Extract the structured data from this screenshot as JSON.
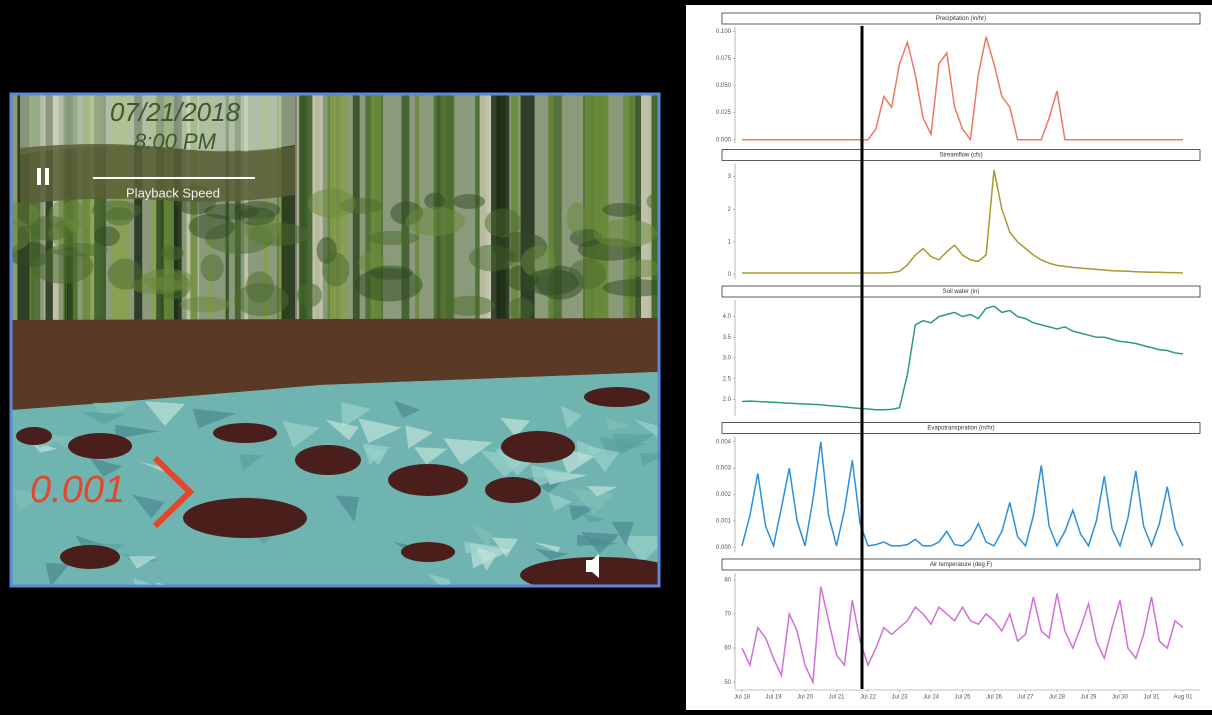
{
  "player": {
    "date": "07/21/2018",
    "time": "8:00 PM",
    "playback_label": "Playback Speed",
    "rate": "0.001"
  },
  "chart_data": [
    {
      "type": "line",
      "title": "Precipitation (in/hr)",
      "color": "#f07860",
      "ylim": [
        -0.003,
        0.104
      ],
      "yticks": [
        {
          "value": 0,
          "label": "0.000"
        },
        {
          "value": 0.025,
          "label": "0.025"
        },
        {
          "value": 0.05,
          "label": "0.050"
        },
        {
          "value": 0.075,
          "label": "0.075"
        },
        {
          "value": 0.1,
          "label": "0.100"
        }
      ],
      "values": [
        0,
        0,
        0,
        0,
        0,
        0,
        0,
        0,
        0,
        0,
        0,
        0,
        0,
        0,
        0,
        0,
        0,
        0.01,
        0.04,
        0.03,
        0.07,
        0.09,
        0.06,
        0.02,
        0.005,
        0.07,
        0.08,
        0.03,
        0.01,
        0,
        0.06,
        0.095,
        0.07,
        0.04,
        0.03,
        0,
        0,
        0,
        0,
        0.02,
        0.045,
        0,
        0,
        0,
        0,
        0,
        0,
        0,
        0,
        0,
        0,
        0,
        0,
        0,
        0,
        0,
        0
      ]
    },
    {
      "type": "line",
      "title": "Streamflow (cfs)",
      "color": "#a89a2a",
      "ylim": [
        -0.15,
        3.4
      ],
      "yticks": [
        0,
        1,
        2,
        3
      ],
      "values": [
        0.05,
        0.05,
        0.05,
        0.05,
        0.05,
        0.05,
        0.05,
        0.05,
        0.05,
        0.05,
        0.05,
        0.05,
        0.05,
        0.05,
        0.05,
        0.05,
        0.05,
        0.05,
        0.05,
        0.06,
        0.1,
        0.3,
        0.6,
        0.8,
        0.55,
        0.45,
        0.7,
        0.9,
        0.6,
        0.45,
        0.4,
        0.6,
        3.2,
        2.0,
        1.3,
        1.0,
        0.8,
        0.6,
        0.45,
        0.35,
        0.28,
        0.25,
        0.22,
        0.2,
        0.18,
        0.16,
        0.14,
        0.12,
        0.11,
        0.1,
        0.09,
        0.08,
        0.07,
        0.07,
        0.06,
        0.06,
        0.05
      ]
    },
    {
      "type": "line",
      "title": "Soil water (in)",
      "color": "#2a9a80",
      "ylim": [
        1.6,
        4.4
      ],
      "yticks": [
        {
          "value": 2,
          "label": "2.0"
        },
        {
          "value": 2.5,
          "label": "2.5"
        },
        {
          "value": 3,
          "label": "3.0"
        },
        {
          "value": 3.5,
          "label": "3.5"
        },
        {
          "value": 4,
          "label": "4.0"
        }
      ],
      "values": [
        1.95,
        1.96,
        1.95,
        1.94,
        1.93,
        1.92,
        1.91,
        1.9,
        1.89,
        1.88,
        1.87,
        1.85,
        1.84,
        1.82,
        1.8,
        1.78,
        1.77,
        1.75,
        1.75,
        1.76,
        1.8,
        2.6,
        3.8,
        3.9,
        3.85,
        4.0,
        4.05,
        4.1,
        4.0,
        4.05,
        3.95,
        4.2,
        4.25,
        4.1,
        4.15,
        4.0,
        3.95,
        3.85,
        3.8,
        3.75,
        3.7,
        3.75,
        3.65,
        3.6,
        3.55,
        3.5,
        3.5,
        3.45,
        3.4,
        3.38,
        3.35,
        3.3,
        3.25,
        3.2,
        3.18,
        3.12,
        3.1
      ]
    },
    {
      "type": "line",
      "title": "Evapotranspiration (in/hr)",
      "color": "#2a90e0",
      "ylim": [
        -0.0002,
        0.0042
      ],
      "yticks": [
        {
          "value": 0,
          "label": "0.000"
        },
        {
          "value": 0.001,
          "label": "0.001"
        },
        {
          "value": 0.002,
          "label": "0.002"
        },
        {
          "value": 0.003,
          "label": "0.003"
        },
        {
          "value": 0.004,
          "label": "0.004"
        }
      ],
      "values": [
        5e-05,
        0.0012,
        0.0028,
        0.0008,
        5e-05,
        0.0015,
        0.003,
        0.001,
        5e-05,
        0.0018,
        0.004,
        0.0012,
        5e-05,
        0.0014,
        0.0033,
        0.0009,
        5e-05,
        0.0001,
        0.0002,
        5e-05,
        5e-05,
        0.0001,
        0.0003,
        5e-05,
        5e-05,
        0.0002,
        0.0006,
        0.0001,
        5e-05,
        0.0003,
        0.0009,
        0.0002,
        5e-05,
        0.0006,
        0.0017,
        0.0004,
        5e-05,
        0.0012,
        0.0031,
        0.0008,
        5e-05,
        0.0006,
        0.0014,
        0.0005,
        5e-05,
        0.001,
        0.0027,
        0.0007,
        5e-05,
        0.0011,
        0.0029,
        0.0008,
        5e-05,
        0.0009,
        0.0023,
        0.0007,
        5e-05
      ]
    },
    {
      "type": "line",
      "title": "Air temperature (deg F)",
      "color": "#d070d8",
      "ylim": [
        48,
        82
      ],
      "yticks": [
        50,
        60,
        70,
        80
      ],
      "categories": [
        "Jul 18",
        null,
        null,
        null,
        "Jul 19",
        null,
        null,
        null,
        "Jul 20",
        null,
        null,
        null,
        "Jul 21",
        null,
        null,
        null,
        "Jul 22",
        null,
        null,
        null,
        "Jul 23",
        null,
        null,
        null,
        "Jul 24",
        null,
        null,
        null,
        "Jul 25",
        null,
        null,
        null,
        "Jul 26",
        null,
        null,
        null,
        "Jul 27",
        null,
        null,
        null,
        "Jul 28",
        null,
        null,
        null,
        "Jul 29",
        null,
        null,
        null,
        "Jul 30",
        null,
        null,
        null,
        "Jul 31",
        null,
        null,
        null,
        "Aug 01"
      ],
      "values": [
        60,
        55,
        66,
        63,
        57,
        52,
        70,
        65,
        55,
        50,
        78,
        68,
        58,
        55,
        74,
        62,
        55,
        60,
        66,
        64,
        66,
        68,
        72,
        70,
        67,
        72,
        70,
        68,
        72,
        68,
        67,
        70,
        68,
        65,
        70,
        62,
        64,
        75,
        65,
        63,
        76,
        65,
        60,
        66,
        73,
        62,
        57,
        66,
        74,
        60,
        57,
        64,
        75,
        62,
        60,
        68,
        66
      ]
    }
  ]
}
